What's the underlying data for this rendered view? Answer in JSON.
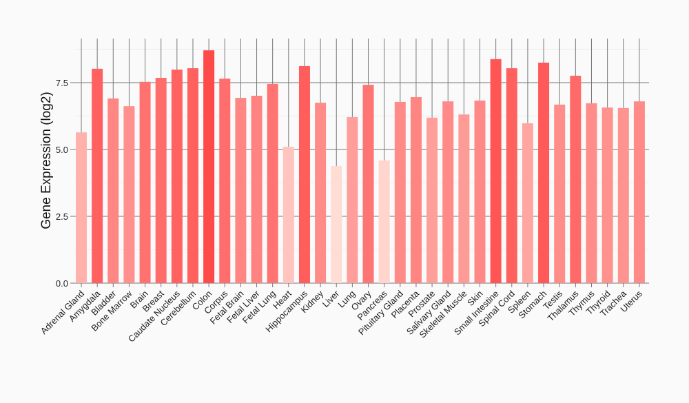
{
  "chart_data": {
    "type": "bar",
    "title": "",
    "xlabel": "",
    "ylabel": "Gene Expression (log2)",
    "ylim": [
      0,
      9.15
    ],
    "yticks": [
      "0.0",
      "2.5",
      "5.0",
      "7.5"
    ],
    "grid": true,
    "color_scale": {
      "low": "#ffdcd4",
      "high": "#ff4a4a"
    },
    "categories": [
      "Adrenal Gland",
      "Amygdala",
      "Bladder",
      "Bone Marrow",
      "Brain",
      "Breast",
      "Caudate Nucleus",
      "Cerebellum",
      "Colon",
      "Corpus",
      "Fetal Brain",
      "Fetal Liver",
      "Fetal Lung",
      "Heart",
      "Hippocampus",
      "Kidney",
      "Liver",
      "Lung",
      "Ovary",
      "Pancreas",
      "Pituitary Gland",
      "Placenta",
      "Prostate",
      "Salivary Gland",
      "Skeletal Muscle",
      "Skin",
      "Small Intestine",
      "Spinal Cord",
      "Spleen",
      "Stomach",
      "Testis",
      "Thalamus",
      "Thymus",
      "Thyroid",
      "Trachea",
      "Uterus"
    ],
    "values": [
      5.64,
      8.02,
      6.91,
      6.62,
      7.53,
      7.68,
      7.99,
      8.04,
      8.71,
      7.65,
      6.93,
      7.01,
      7.45,
      5.1,
      8.12,
      6.75,
      4.38,
      6.21,
      7.42,
      4.59,
      6.78,
      6.96,
      6.19,
      6.8,
      6.31,
      6.83,
      8.38,
      8.04,
      5.98,
      8.25,
      6.68,
      7.76,
      6.73,
      6.57,
      6.55,
      6.8
    ]
  }
}
